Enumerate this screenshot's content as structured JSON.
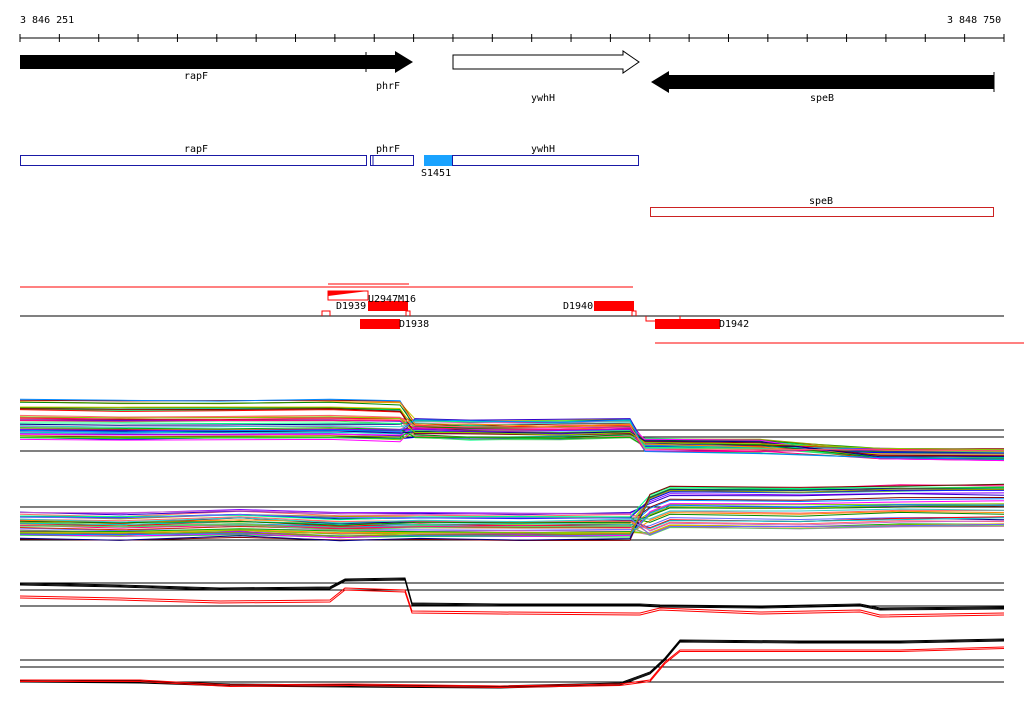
{
  "ruler": {
    "start_label": "3 846 251",
    "end_label": "3 848 750"
  },
  "genes": [
    {
      "name": "rapF",
      "strand": "+"
    },
    {
      "name": "phrF",
      "strand": "+"
    },
    {
      "name": "ywhH",
      "strand": "+"
    },
    {
      "name": "speB",
      "strand": "-"
    }
  ],
  "annotation_track": {
    "features": [
      "rapF",
      "phrF",
      "ywhH"
    ],
    "promoter_label": "S1451",
    "reverse_features": [
      "speB"
    ]
  },
  "transcript_labels": [
    "D1939",
    "U2947",
    "M16",
    "D1940",
    "D1938",
    "D1942"
  ],
  "colors": {
    "forward_gene": "#000000",
    "open_gene": "#ffffff",
    "annotation_forward": "#1a1aa6",
    "annotation_reverse": "#cc2222",
    "promoter": "#1aa3ff",
    "transcript": "#ff0000",
    "track_baseline": "#000000"
  }
}
